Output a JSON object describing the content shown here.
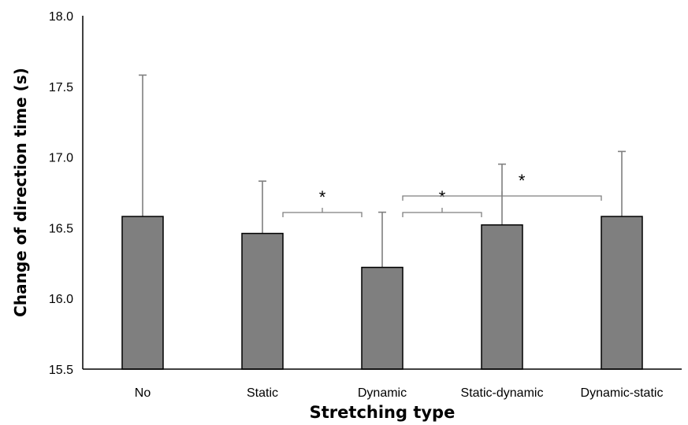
{
  "chart_data": {
    "type": "bar",
    "xlabel": "Stretching type",
    "ylabel": "Change of direction time (s)",
    "ylim": [
      15.5,
      18.0
    ],
    "yticks": [
      "15.5",
      "16.0",
      "16.5",
      "17.0",
      "17.5",
      "18.0"
    ],
    "categories": [
      "No",
      "Static",
      "Dynamic",
      "Static-dynamic",
      "Dynamic-static"
    ],
    "values": [
      16.58,
      16.46,
      16.22,
      16.52,
      16.58
    ],
    "error_upper": [
      1.0,
      0.37,
      0.39,
      0.43,
      0.46
    ],
    "significance": [
      {
        "from": "Static",
        "to": "Dynamic",
        "label": "*"
      },
      {
        "from": "Dynamic",
        "to": "Static-dynamic",
        "label": "*"
      },
      {
        "from": "Dynamic",
        "to": "Dynamic-static",
        "label": "*"
      }
    ],
    "bar_color": "#7f7f7f",
    "grid": false,
    "legend": "none"
  }
}
